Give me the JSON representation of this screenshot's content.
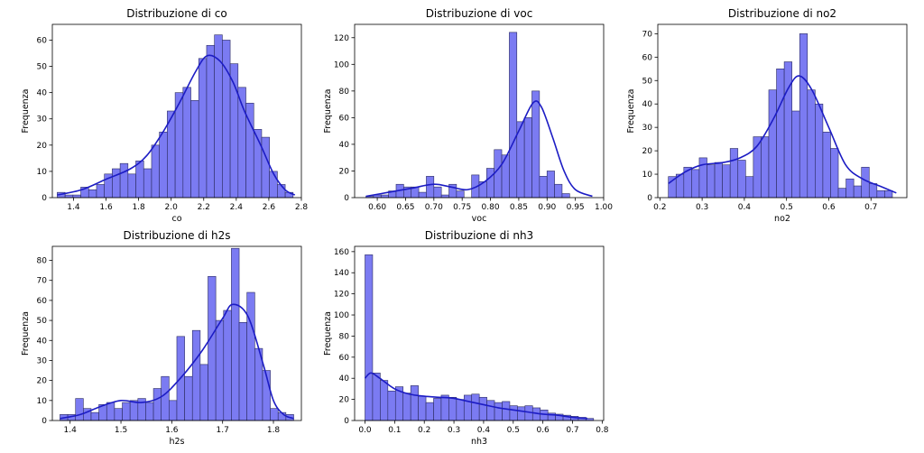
{
  "figure": {
    "background": "#ffffff",
    "bar_color": "#7b7bf2",
    "edge_color": "#2b2b60",
    "kde_color": "#1c1cc4"
  },
  "chart_data": [
    {
      "type": "bar",
      "title": "Distribuzione di co",
      "xlabel": "co",
      "ylabel": "Frequenza",
      "xlim": [
        1.27,
        2.8
      ],
      "ylim": [
        0,
        66
      ],
      "xticks": [
        1.4,
        1.6,
        1.8,
        2.0,
        2.2,
        2.4,
        2.6,
        2.8
      ],
      "xtick_labels": [
        "1.4",
        "1.6",
        "1.8",
        "2.0",
        "2.2",
        "2.4",
        "2.6",
        "2.8"
      ],
      "yticks": [
        0,
        10,
        20,
        30,
        40,
        50,
        60
      ],
      "bin_start": 1.3,
      "bin_width": 0.0483,
      "values": [
        2,
        1,
        1,
        4,
        3,
        5,
        9,
        11,
        13,
        9,
        14,
        11,
        20,
        25,
        33,
        40,
        42,
        37,
        53,
        58,
        62,
        60,
        51,
        42,
        36,
        26,
        23,
        10,
        5,
        2
      ],
      "kde": [
        [
          1.3,
          1
        ],
        [
          1.45,
          3
        ],
        [
          1.6,
          7
        ],
        [
          1.75,
          11
        ],
        [
          1.85,
          16
        ],
        [
          1.95,
          25
        ],
        [
          2.05,
          36
        ],
        [
          2.15,
          48
        ],
        [
          2.22,
          54
        ],
        [
          2.3,
          52
        ],
        [
          2.38,
          44
        ],
        [
          2.45,
          33
        ],
        [
          2.55,
          20
        ],
        [
          2.63,
          9
        ],
        [
          2.7,
          3
        ],
        [
          2.76,
          1
        ]
      ]
    },
    {
      "type": "bar",
      "title": "Distribuzione di voc",
      "xlabel": "voc",
      "ylabel": "Frequenza",
      "xlim": [
        0.56,
        1.0
      ],
      "ylim": [
        0,
        130
      ],
      "xticks": [
        0.6,
        0.65,
        0.7,
        0.75,
        0.8,
        0.85,
        0.9,
        0.95,
        1.0
      ],
      "xtick_labels": [
        "0.60",
        "0.65",
        "0.70",
        "0.75",
        "0.80",
        "0.85",
        "0.90",
        "0.95",
        "1.00"
      ],
      "yticks": [
        0,
        20,
        40,
        60,
        80,
        100,
        120
      ],
      "bin_start": 0.58,
      "bin_width": 0.01333,
      "values": [
        1,
        2,
        2,
        5,
        10,
        8,
        8,
        4,
        16,
        8,
        2,
        10,
        5,
        0,
        17,
        12,
        22,
        36,
        32,
        124,
        57,
        60,
        80,
        16,
        20,
        10,
        3,
        0,
        0,
        0
      ],
      "kde": [
        [
          0.58,
          1
        ],
        [
          0.62,
          4
        ],
        [
          0.66,
          7
        ],
        [
          0.7,
          10
        ],
        [
          0.73,
          8
        ],
        [
          0.76,
          6
        ],
        [
          0.79,
          12
        ],
        [
          0.82,
          25
        ],
        [
          0.85,
          50
        ],
        [
          0.875,
          71
        ],
        [
          0.89,
          68
        ],
        [
          0.91,
          45
        ],
        [
          0.93,
          20
        ],
        [
          0.95,
          6
        ],
        [
          0.98,
          1
        ]
      ]
    },
    {
      "type": "bar",
      "title": "Distribuzione di no2",
      "xlabel": "no2",
      "ylabel": "Frequenza",
      "xlim": [
        0.195,
        0.785
      ],
      "ylim": [
        0,
        74
      ],
      "xticks": [
        0.2,
        0.3,
        0.4,
        0.5,
        0.6,
        0.7
      ],
      "xtick_labels": [
        "0.2",
        "0.3",
        "0.4",
        "0.5",
        "0.6",
        "0.7"
      ],
      "yticks": [
        0,
        10,
        20,
        30,
        40,
        50,
        60,
        70
      ],
      "bin_start": 0.22,
      "bin_width": 0.0183,
      "values": [
        9,
        10,
        13,
        12,
        17,
        14,
        15,
        14,
        21,
        16,
        9,
        26,
        26,
        46,
        55,
        58,
        37,
        70,
        46,
        40,
        28,
        21,
        4,
        8,
        5,
        13,
        6,
        3,
        3,
        0
      ],
      "kde": [
        [
          0.22,
          6
        ],
        [
          0.26,
          11
        ],
        [
          0.3,
          14
        ],
        [
          0.35,
          15
        ],
        [
          0.39,
          17
        ],
        [
          0.43,
          22
        ],
        [
          0.47,
          34
        ],
        [
          0.505,
          47
        ],
        [
          0.53,
          52
        ],
        [
          0.56,
          46
        ],
        [
          0.6,
          30
        ],
        [
          0.64,
          14
        ],
        [
          0.68,
          8
        ],
        [
          0.72,
          5
        ],
        [
          0.76,
          2
        ]
      ]
    },
    {
      "type": "bar",
      "title": "Distribuzione di h2s",
      "xlabel": "h2s",
      "ylabel": "Frequenza",
      "xlim": [
        1.365,
        1.855
      ],
      "ylim": [
        0,
        87
      ],
      "xticks": [
        1.4,
        1.5,
        1.6,
        1.7,
        1.8
      ],
      "xtick_labels": [
        "1.4",
        "1.5",
        "1.6",
        "1.7",
        "1.8"
      ],
      "yticks": [
        0,
        10,
        20,
        30,
        40,
        50,
        60,
        70,
        80
      ],
      "bin_start": 1.38,
      "bin_width": 0.01533,
      "values": [
        3,
        3,
        11,
        6,
        4,
        8,
        9,
        6,
        9,
        10,
        11,
        9,
        16,
        22,
        10,
        42,
        22,
        45,
        28,
        72,
        50,
        55,
        86,
        49,
        64,
        36,
        25,
        6,
        4,
        3
      ],
      "kde": [
        [
          1.38,
          1
        ],
        [
          1.42,
          3
        ],
        [
          1.46,
          7
        ],
        [
          1.5,
          10
        ],
        [
          1.54,
          9
        ],
        [
          1.58,
          12
        ],
        [
          1.62,
          22
        ],
        [
          1.66,
          35
        ],
        [
          1.7,
          51
        ],
        [
          1.72,
          58
        ],
        [
          1.75,
          52
        ],
        [
          1.78,
          28
        ],
        [
          1.8,
          10
        ],
        [
          1.82,
          3
        ],
        [
          1.84,
          1
        ]
      ]
    },
    {
      "type": "bar",
      "title": "Distribuzione di nh3",
      "xlabel": "nh3",
      "ylabel": "Frequenza",
      "xlim": [
        -0.035,
        0.805
      ],
      "ylim": [
        0,
        165
      ],
      "xticks": [
        0.0,
        0.1,
        0.2,
        0.3,
        0.4,
        0.5,
        0.6,
        0.7,
        0.8
      ],
      "xtick_labels": [
        "0.0",
        "0.1",
        "0.2",
        "0.3",
        "0.4",
        "0.5",
        "0.6",
        "0.7",
        "0.8"
      ],
      "yticks": [
        0,
        20,
        40,
        60,
        80,
        100,
        120,
        140,
        160
      ],
      "bin_start": 0.0,
      "bin_width": 0.0257,
      "values": [
        157,
        45,
        38,
        28,
        32,
        26,
        33,
        23,
        17,
        21,
        24,
        22,
        20,
        24,
        25,
        22,
        19,
        17,
        18,
        14,
        13,
        14,
        12,
        10,
        7,
        6,
        5,
        4,
        3,
        2
      ],
      "kde": [
        [
          0.0,
          40
        ],
        [
          0.02,
          45
        ],
        [
          0.05,
          40
        ],
        [
          0.1,
          30
        ],
        [
          0.15,
          25
        ],
        [
          0.2,
          23
        ],
        [
          0.25,
          22
        ],
        [
          0.3,
          21
        ],
        [
          0.35,
          18
        ],
        [
          0.4,
          15
        ],
        [
          0.45,
          12
        ],
        [
          0.5,
          10
        ],
        [
          0.55,
          8
        ],
        [
          0.6,
          6
        ],
        [
          0.65,
          5
        ],
        [
          0.7,
          3
        ],
        [
          0.75,
          2
        ]
      ]
    }
  ]
}
